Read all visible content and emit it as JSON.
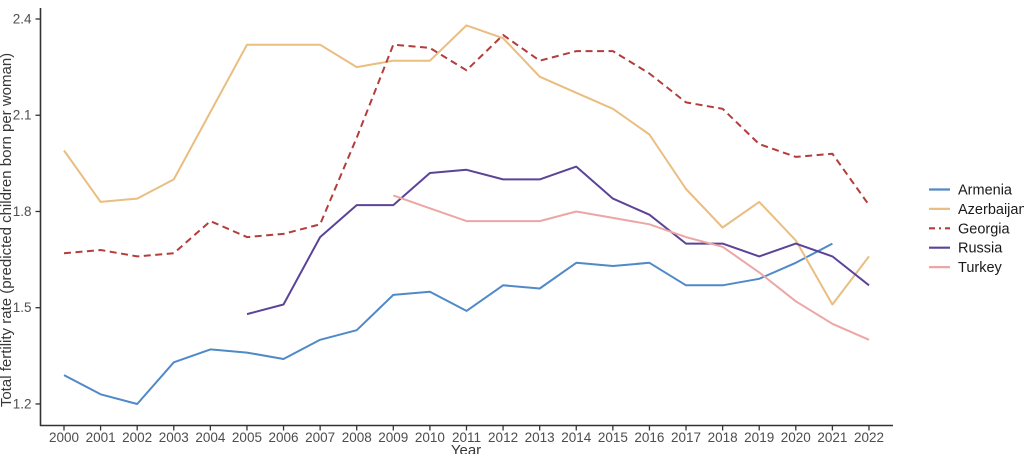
{
  "chart_data": {
    "type": "line",
    "title": "",
    "xlabel": "Year",
    "ylabel": "Total fertility rate (predicted children born per woman)",
    "grid": "off",
    "legend_position": "right",
    "ylim": [
      1.13,
      2.43
    ],
    "y_ticks": [
      2.4,
      2.1,
      1.8,
      1.5,
      1.2
    ],
    "y_tick_labels": [
      "2.4",
      "2.1",
      "1.8",
      "1.5",
      "1.2"
    ],
    "x": [
      2000,
      2001,
      2002,
      2003,
      2004,
      2005,
      2006,
      2007,
      2008,
      2009,
      2010,
      2011,
      2012,
      2013,
      2014,
      2015,
      2016,
      2017,
      2018,
      2019,
      2020,
      2021,
      2022
    ],
    "x_tick_labels": [
      "2000",
      "2001",
      "2002",
      "2003",
      "2004",
      "2005",
      "2006",
      "2007",
      "2008",
      "2009",
      "2010",
      "2011",
      "2012",
      "2013",
      "2014",
      "2015",
      "2016",
      "2017",
      "2018",
      "2019",
      "2020",
      "2021",
      "2022"
    ],
    "series": [
      {
        "name": "Armenia",
        "color": "#5089c8",
        "dash": "solid",
        "values": [
          1.29,
          1.23,
          1.2,
          1.33,
          1.37,
          1.36,
          1.34,
          1.4,
          1.43,
          1.54,
          1.55,
          1.49,
          1.57,
          1.56,
          1.64,
          1.63,
          1.64,
          1.57,
          1.57,
          1.59,
          1.64,
          1.7,
          null
        ]
      },
      {
        "name": "Azerbaijan",
        "color": "#eabd81",
        "dash": "solid",
        "values": [
          1.99,
          1.83,
          1.84,
          1.9,
          2.11,
          2.32,
          2.32,
          2.32,
          2.25,
          2.27,
          2.27,
          2.38,
          2.34,
          2.22,
          2.17,
          2.12,
          2.04,
          1.87,
          1.75,
          1.83,
          1.71,
          1.51,
          1.66
        ]
      },
      {
        "name": "Georgia",
        "color": "#b43d3c",
        "dash": "dashed",
        "values": [
          1.67,
          1.68,
          1.66,
          1.67,
          1.77,
          1.72,
          1.73,
          1.76,
          2.03,
          2.32,
          2.31,
          2.24,
          2.35,
          2.27,
          2.3,
          2.3,
          2.23,
          2.14,
          2.12,
          2.01,
          1.97,
          1.98,
          1.82
        ]
      },
      {
        "name": "Russia",
        "color": "#5b4397",
        "dash": "solid",
        "values": [
          null,
          null,
          null,
          null,
          null,
          1.48,
          1.51,
          1.72,
          1.82,
          1.82,
          1.92,
          1.93,
          1.9,
          1.9,
          1.94,
          1.84,
          1.79,
          1.7,
          1.7,
          1.66,
          1.7,
          1.66,
          1.57
        ]
      },
      {
        "name": "Turkey",
        "color": "#eca6a5",
        "dash": "solid",
        "values": [
          null,
          null,
          null,
          null,
          null,
          null,
          null,
          null,
          null,
          1.85,
          1.81,
          1.77,
          1.77,
          1.77,
          1.8,
          1.78,
          1.76,
          1.72,
          1.69,
          1.61,
          1.52,
          1.45,
          1.4
        ]
      }
    ],
    "legend_items": [
      "Armenia",
      "Azerbaijan",
      "Georgia",
      "Russia",
      "Turkey"
    ]
  }
}
